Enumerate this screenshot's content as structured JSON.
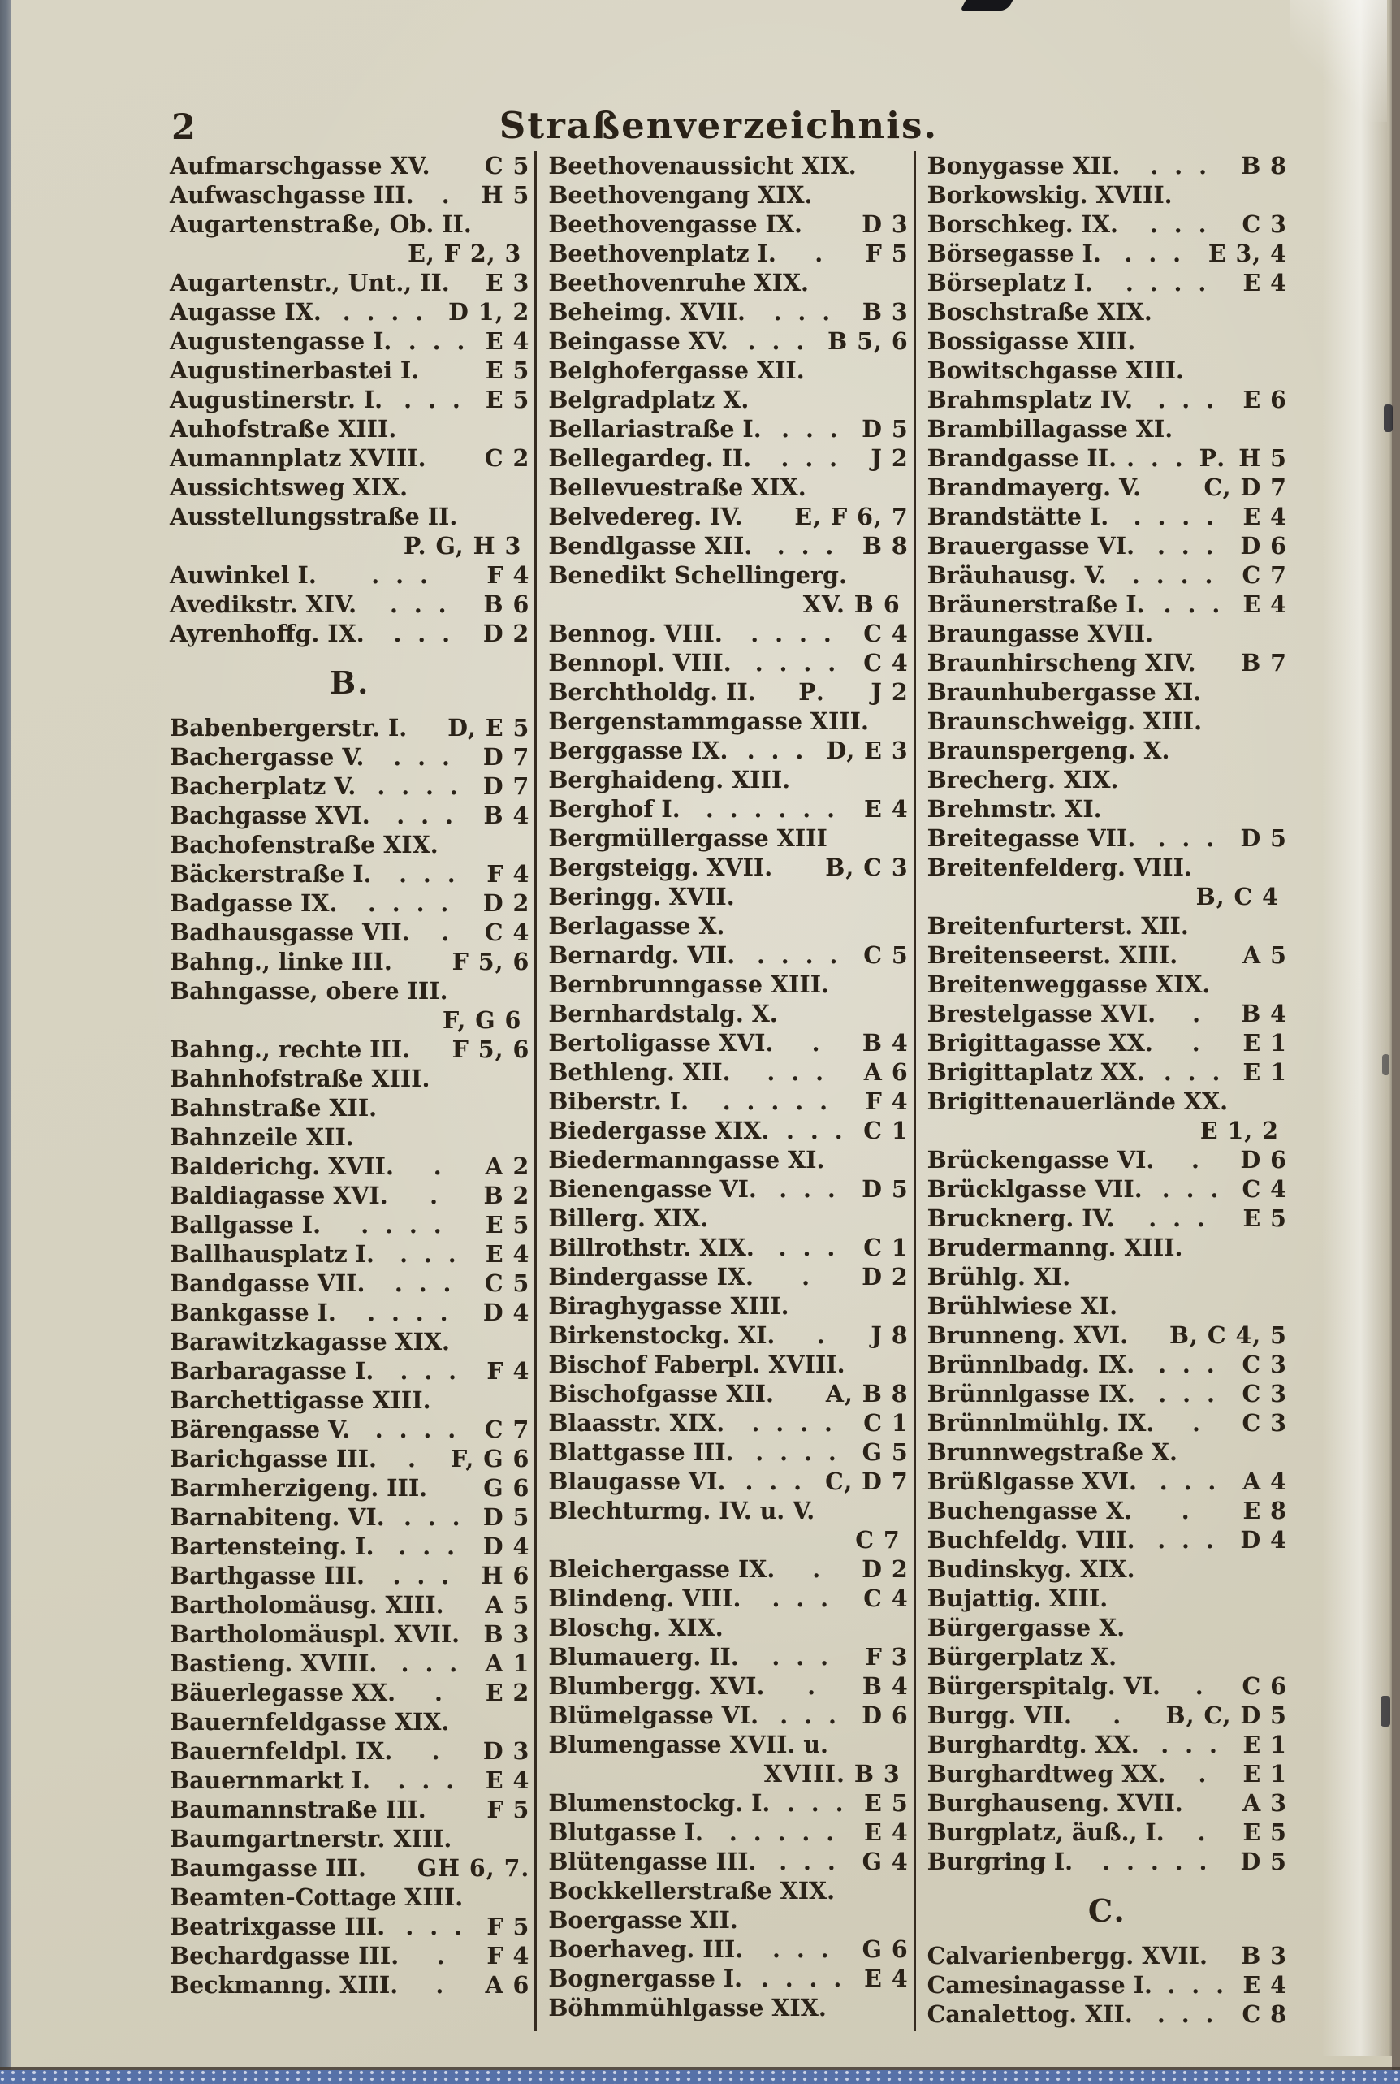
{
  "page": {
    "number": "2",
    "title": "Straßenverzeichnis."
  },
  "colors": {
    "ink": "#2a2218",
    "paper": "#d6d2c0",
    "rule": "#352b20",
    "band": "#5671a8",
    "edge": "#7a7065"
  },
  "columns": [
    {
      "lines": [
        [
          "e",
          "Aufmarschgasse XV.",
          "",
          "C 5"
        ],
        [
          "e",
          "Aufwaschgasse III.",
          ". ",
          "H 5"
        ],
        [
          "e",
          "Augartenstraße, Ob. II.",
          "",
          ""
        ],
        [
          "c",
          "E, F 2, 3"
        ],
        [
          "e",
          "Augartenstr., Unt., II.",
          "",
          "E 3"
        ],
        [
          "e",
          "Augasse IX.",
          ". . . .",
          "D 1, 2"
        ],
        [
          "e",
          "Augustengasse I.",
          ". . .",
          "E 4"
        ],
        [
          "e",
          "Augustinerbastei I.",
          "",
          "E 5"
        ],
        [
          "e",
          "Augustinerstr. I.",
          ". . .",
          "E 5"
        ],
        [
          "e",
          "Auhofstraße XIII.",
          "",
          ""
        ],
        [
          "e",
          "Aumannplatz XVIII.",
          "",
          "C 2"
        ],
        [
          "e",
          "Aussichtsweg XIX.",
          "",
          ""
        ],
        [
          "e",
          "Ausstellungsstraße II.",
          "",
          ""
        ],
        [
          "c",
          "P. G, H 3"
        ],
        [
          "e",
          "Auwinkel I.",
          ". . .",
          "F 4"
        ],
        [
          "e",
          "Avedikstr. XIV.",
          ". . .",
          "B 6"
        ],
        [
          "e",
          "Ayrenhoffg. IX.",
          ". . .",
          "D 2"
        ],
        [
          "h",
          "B."
        ],
        [
          "e",
          "Babenbergerstr. I.",
          "",
          "D, E 5"
        ],
        [
          "e",
          "Bachergasse V.",
          ". . .",
          "D 7"
        ],
        [
          "e",
          "Bacherplatz V.",
          ". . . .",
          "D 7"
        ],
        [
          "e",
          "Bachgasse XVI.",
          ". . .",
          "B 4"
        ],
        [
          "e",
          "Bachofenstraße XIX.",
          "",
          ""
        ],
        [
          "e",
          "Bäckerstraße I.",
          ". . .",
          "F 4"
        ],
        [
          "e",
          "Badgasse IX.",
          ". . . .",
          "D 2"
        ],
        [
          "e",
          "Badhausgasse VII.",
          ". ",
          "C 4"
        ],
        [
          "e",
          "Bahng., linke III.",
          "",
          "F 5, 6"
        ],
        [
          "e",
          "Bahngasse, obere III.",
          "",
          ""
        ],
        [
          "c",
          "F, G 6"
        ],
        [
          "e",
          "Bahng., rechte III.",
          "",
          "F 5, 6"
        ],
        [
          "e",
          "Bahnhofstraße XIII.",
          "",
          ""
        ],
        [
          "e",
          "Bahnstraße XII.",
          "",
          ""
        ],
        [
          "e",
          "Bahnzeile XII.",
          "",
          ""
        ],
        [
          "e",
          "Balderichg. XVII.",
          ". ",
          "A 2"
        ],
        [
          "e",
          "Baldiagasse XVI.",
          ". ",
          "B 2"
        ],
        [
          "e",
          "Ballgasse I.",
          ". . . .",
          "E 5"
        ],
        [
          "e",
          "Ballhausplatz I.",
          ". . .",
          "E 4"
        ],
        [
          "e",
          "Bandgasse VII.",
          ". . .",
          "C 5"
        ],
        [
          "e",
          "Bankgasse I.",
          ". . . .",
          "D 4"
        ],
        [
          "e",
          "Barawitzkagasse XIX.",
          "",
          ""
        ],
        [
          "e",
          "Barbaragasse I.",
          ". . .",
          "F 4"
        ],
        [
          "e",
          "Barchettigasse XIII.",
          "",
          ""
        ],
        [
          "e",
          "Bärengasse V.",
          ". . . .",
          "C 7"
        ],
        [
          "e",
          "Barichgasse III.",
          ".",
          "F, G 6"
        ],
        [
          "e",
          "Barmherzigeng. III.",
          "",
          "G 6"
        ],
        [
          "e",
          "Barnabiteng. VI.",
          ". . .",
          "D 5"
        ],
        [
          "e",
          "Bartensteing. I.",
          ". . .",
          "D 4"
        ],
        [
          "e",
          "Barthgasse III.",
          ". . .",
          "H 6"
        ],
        [
          "e",
          "Bartholomäusg. XIII.",
          "",
          "A 5"
        ],
        [
          "e",
          "Bartholomäuspl. XVII.",
          "",
          "B 3"
        ],
        [
          "e",
          "Bastieng. XVIII.",
          ". . .",
          "A 1"
        ],
        [
          "e",
          "Bäuerlegasse XX.",
          ". ",
          "E 2"
        ],
        [
          "e",
          "Bauernfeldgasse XIX.",
          "",
          ""
        ],
        [
          "e",
          "Bauernfeldpl. IX.",
          ". ",
          "D 3"
        ],
        [
          "e",
          "Bauernmarkt I.",
          ". . .",
          "E 4"
        ],
        [
          "e",
          "Baumannstraße III.",
          "",
          "F 5"
        ],
        [
          "e",
          "Baumgartnerstr. XIII.",
          "",
          ""
        ],
        [
          "e",
          "Baumgasse III.",
          "",
          "GH 6, 7."
        ],
        [
          "e",
          "Beamten-Cottage XIII.",
          "",
          ""
        ],
        [
          "e",
          "Beatrixgasse III.",
          ". . .",
          "F 5"
        ],
        [
          "e",
          "Bechardgasse III.",
          ". ",
          "F 4"
        ],
        [
          "e",
          "Beckmanng. XIII.",
          ". ",
          "A 6"
        ]
      ]
    },
    {
      "lines": [
        [
          "e",
          "Beethovenaussicht XIX.",
          "",
          ""
        ],
        [
          "e",
          "Beethovengang XIX.",
          "",
          ""
        ],
        [
          "e",
          "Beethovengasse IX.",
          "",
          "D 3"
        ],
        [
          "e",
          "Beethovenplatz I.",
          ". ",
          "F 5"
        ],
        [
          "e",
          "Beethovenruhe XIX.",
          "",
          ""
        ],
        [
          "e",
          "Beheimg. XVII.",
          ". . .",
          "B 3"
        ],
        [
          "e",
          "Beingasse XV.",
          ". . .",
          "B 5, 6"
        ],
        [
          "e",
          "Belghofergasse XII.",
          "",
          ""
        ],
        [
          "e",
          "Belgradplatz X.",
          "",
          ""
        ],
        [
          "e",
          "Bellariastraße I.",
          ". . .",
          "D 5"
        ],
        [
          "e",
          "Bellegardeg. II.",
          ". . .",
          "J 2"
        ],
        [
          "e",
          "Bellevuestraße XIX.",
          "",
          ""
        ],
        [
          "e",
          "Belvedereg. IV.",
          "",
          "E, F 6, 7"
        ],
        [
          "e",
          "Bendlgasse XII.",
          ". . .",
          "B 8"
        ],
        [
          "e",
          "Benedikt Schellingerg.",
          "",
          ""
        ],
        [
          "c",
          "XV. B 6"
        ],
        [
          "e",
          "Bennog. VIII.",
          ". . . .",
          "C 4"
        ],
        [
          "e",
          "Bennopl. VIII.",
          ". . . .",
          "C 4"
        ],
        [
          "e",
          "Berchtholdg. II.",
          "P.",
          "J 2"
        ],
        [
          "e",
          "Bergenstammgasse XIII.",
          "",
          ""
        ],
        [
          "e",
          "Berggasse IX.",
          ". . .",
          "D, E 3"
        ],
        [
          "e",
          "Berghaideng. XIII.",
          "",
          ""
        ],
        [
          "e",
          "Berghof I.",
          ". . . . . .",
          "E 4"
        ],
        [
          "e",
          "Bergmüllergasse XIII",
          "",
          ""
        ],
        [
          "e",
          "Bergsteigg. XVII.",
          "",
          "B, C 3"
        ],
        [
          "e",
          "Beringg. XVII.",
          "",
          ""
        ],
        [
          "e",
          "Berlagasse X.",
          "",
          ""
        ],
        [
          "e",
          "Bernardg. VII.",
          ". . . .",
          "C 5"
        ],
        [
          "e",
          "Bernbrunngasse XIII.",
          "",
          ""
        ],
        [
          "e",
          "Bernhardstalg. X.",
          "",
          ""
        ],
        [
          "e",
          "Bertoligasse XVI.",
          ". ",
          "B 4"
        ],
        [
          "e",
          "Bethleng. XII.",
          ". . .",
          "A 6"
        ],
        [
          "e",
          "Biberstr. I.",
          ". . . . .",
          "F 4"
        ],
        [
          "e",
          "Biedergasse XIX.",
          ". . .",
          "C 1"
        ],
        [
          "e",
          "Biedermanngasse XI.",
          "",
          ""
        ],
        [
          "e",
          "Bienengasse VI.",
          ". . .",
          "D 5"
        ],
        [
          "e",
          "Billerg. XIX.",
          "",
          ""
        ],
        [
          "e",
          "Billrothstr. XIX.",
          ". . .",
          "C 1"
        ],
        [
          "e",
          "Bindergasse IX.",
          ". ",
          "D 2"
        ],
        [
          "e",
          "Biraghygasse XIII.",
          "",
          ""
        ],
        [
          "e",
          "Birkenstockg. XI.",
          ". ",
          "J 8"
        ],
        [
          "e",
          "Bischof Faberpl. XVIII.",
          "",
          ""
        ],
        [
          "e",
          "Bischofgasse XII.",
          "",
          "A, B 8"
        ],
        [
          "e",
          "Blaasstr. XIX.",
          ". . . .",
          "C 1"
        ],
        [
          "e",
          "Blattgasse III.",
          ". . . .",
          "G 5"
        ],
        [
          "e",
          "Blaugasse VI.",
          ". . .",
          "C, D 7"
        ],
        [
          "e",
          "Blechturmg. IV. u. V.",
          "",
          ""
        ],
        [
          "c",
          "C 7"
        ],
        [
          "e",
          "Bleichergasse IX.",
          ". ",
          "D 2"
        ],
        [
          "e",
          "Blindeng. VIII.",
          ". . .",
          "C 4"
        ],
        [
          "e",
          "Bloschg. XIX.",
          "",
          ""
        ],
        [
          "e",
          "Blumauerg. II.",
          ". . .",
          "F 3"
        ],
        [
          "e",
          "Blumbergg. XVI.",
          ". ",
          "B 4"
        ],
        [
          "e",
          "Blümelgasse VI.",
          ". . .",
          "D 6"
        ],
        [
          "e",
          "Blumengasse XVII. u.",
          "",
          ""
        ],
        [
          "c",
          "XVIII. B 3"
        ],
        [
          "e",
          "Blumenstockg. I.",
          ". . .",
          "E 5"
        ],
        [
          "e",
          "Blutgasse I.",
          ". . . . .",
          "E 4"
        ],
        [
          "e",
          "Blütengasse III.",
          ". . .",
          "G 4"
        ],
        [
          "e",
          "Bockkellerstraße XIX.",
          "",
          ""
        ],
        [
          "e",
          "Boergasse XII.",
          "",
          ""
        ],
        [
          "e",
          "Boerhaveg. III.",
          ". . .",
          "G 6"
        ],
        [
          "e",
          "Bognergasse I.",
          ". . . .",
          "E 4"
        ],
        [
          "e",
          "Böhmmühlgasse XIX.",
          "",
          ""
        ]
      ]
    },
    {
      "lines": [
        [
          "e",
          "Bonygasse XII.",
          ". . .",
          "B 8"
        ],
        [
          "e",
          "Borkowskig. XVIII.",
          "",
          ""
        ],
        [
          "e",
          "Borschkeg. IX.",
          ". . .",
          "C 3"
        ],
        [
          "e",
          "Börsegasse I.",
          ". . .",
          "E 3, 4"
        ],
        [
          "e",
          "Börseplatz I.",
          ". . . .",
          "E 4"
        ],
        [
          "e",
          "Boschstraße XIX.",
          "",
          ""
        ],
        [
          "e",
          "Bossigasse XIII.",
          "",
          ""
        ],
        [
          "e",
          "Bowitschgasse XIII.",
          "",
          ""
        ],
        [
          "e",
          "Brahmsplatz IV.",
          ". . .",
          "E 6"
        ],
        [
          "e",
          "Brambillagasse XI.",
          "",
          ""
        ],
        [
          "e",
          "Brandgasse II.",
          ". . . P.",
          "H 5"
        ],
        [
          "e",
          "Brandmayerg. V.",
          "",
          "C, D 7"
        ],
        [
          "e",
          "Brandstätte I.",
          ". . . .",
          "E 4"
        ],
        [
          "e",
          "Brauergasse VI.",
          ". . .",
          "D 6"
        ],
        [
          "e",
          "Bräuhausg. V.",
          ". . . .",
          "C 7"
        ],
        [
          "e",
          "Bräunerstraße I.",
          ". . .",
          "E 4"
        ],
        [
          "e",
          "Braungasse XVII.",
          "",
          ""
        ],
        [
          "e",
          "Braunhirscheng XIV.",
          "",
          "B 7"
        ],
        [
          "e",
          "Braunhubergasse XI.",
          "",
          ""
        ],
        [
          "e",
          "Braunschweigg. XIII.",
          "",
          ""
        ],
        [
          "e",
          "Braunspergeng. X.",
          "",
          ""
        ],
        [
          "e",
          "Brecherg. XIX.",
          "",
          ""
        ],
        [
          "e",
          "Brehmstr. XI.",
          "",
          ""
        ],
        [
          "e",
          "Breitegasse VII.",
          ". . .",
          "D 5"
        ],
        [
          "e",
          "Breitenfelderg. VIII.",
          "",
          ""
        ],
        [
          "c",
          "B, C 4"
        ],
        [
          "e",
          "Breitenfurterst. XII.",
          "",
          ""
        ],
        [
          "e",
          "Breitenseerst. XIII.",
          "",
          "A 5"
        ],
        [
          "e",
          "Breitenweggasse XIX.",
          "",
          ""
        ],
        [
          "e",
          "Brestelgasse XVI.",
          ". ",
          "B 4"
        ],
        [
          "e",
          "Brigittagasse XX.",
          ". ",
          "E 1"
        ],
        [
          "e",
          "Brigittaplatz XX.",
          ". . .",
          "E 1"
        ],
        [
          "e",
          "Brigittenauerlände XX.",
          "",
          ""
        ],
        [
          "c",
          "E 1, 2"
        ],
        [
          "e",
          "Brückengasse VI.",
          ". ",
          "D 6"
        ],
        [
          "e",
          "Brücklgasse VII.",
          ". . .",
          "C 4"
        ],
        [
          "e",
          "Brucknerg. IV.",
          ". . .",
          "E 5"
        ],
        [
          "e",
          "Brudermanng. XIII.",
          "",
          ""
        ],
        [
          "e",
          "Brühlg. XI.",
          "",
          ""
        ],
        [
          "e",
          "Brühlwiese XI.",
          "",
          ""
        ],
        [
          "e",
          "Brunneng. XVI.",
          "",
          "B, C 4, 5"
        ],
        [
          "e",
          "Brünnlbadg. IX.",
          ". . .",
          "C 3"
        ],
        [
          "e",
          "Brünnlgasse IX.",
          ". . .",
          "C 3"
        ],
        [
          "e",
          "Brünnlmühlg. IX.",
          ". ",
          "C 3"
        ],
        [
          "e",
          "Brunnwegstraße X.",
          "",
          ""
        ],
        [
          "e",
          "Brüßlgasse XVI.",
          ". . .",
          "A 4"
        ],
        [
          "e",
          "Buchengasse X.",
          ". ",
          "E 8"
        ],
        [
          "e",
          "Buchfeldg. VIII.",
          ". . .",
          "D 4"
        ],
        [
          "e",
          "Budinskyg. XIX.",
          "",
          ""
        ],
        [
          "e",
          "Bujattig. XIII.",
          "",
          ""
        ],
        [
          "e",
          "Bürgergasse X.",
          "",
          ""
        ],
        [
          "e",
          "Bürgerplatz X.",
          "",
          ""
        ],
        [
          "e",
          "Bürgerspitalg. VI.",
          ". ",
          "C 6"
        ],
        [
          "e",
          "Burgg. VII.",
          ". ",
          "B, C, D 5"
        ],
        [
          "e",
          "Burghardtg. XX.",
          ". . .",
          "E 1"
        ],
        [
          "e",
          "Burghardtweg XX.",
          ". ",
          "E 1"
        ],
        [
          "e",
          "Burghauseng. XVII.",
          "",
          "A 3"
        ],
        [
          "e",
          "Burgplatz, äuß., I.",
          ". ",
          "E 5"
        ],
        [
          "e",
          "Burgring I.",
          ". . . . .",
          "D 5"
        ],
        [
          "h",
          "C."
        ],
        [
          "e",
          "Calvarienbergg. XVII.",
          "",
          "B 3"
        ],
        [
          "e",
          "Camesinagasse I.",
          ". . .",
          "E 4"
        ],
        [
          "e",
          "Canalettog. XII.",
          ". . .",
          "C 8"
        ]
      ]
    }
  ]
}
